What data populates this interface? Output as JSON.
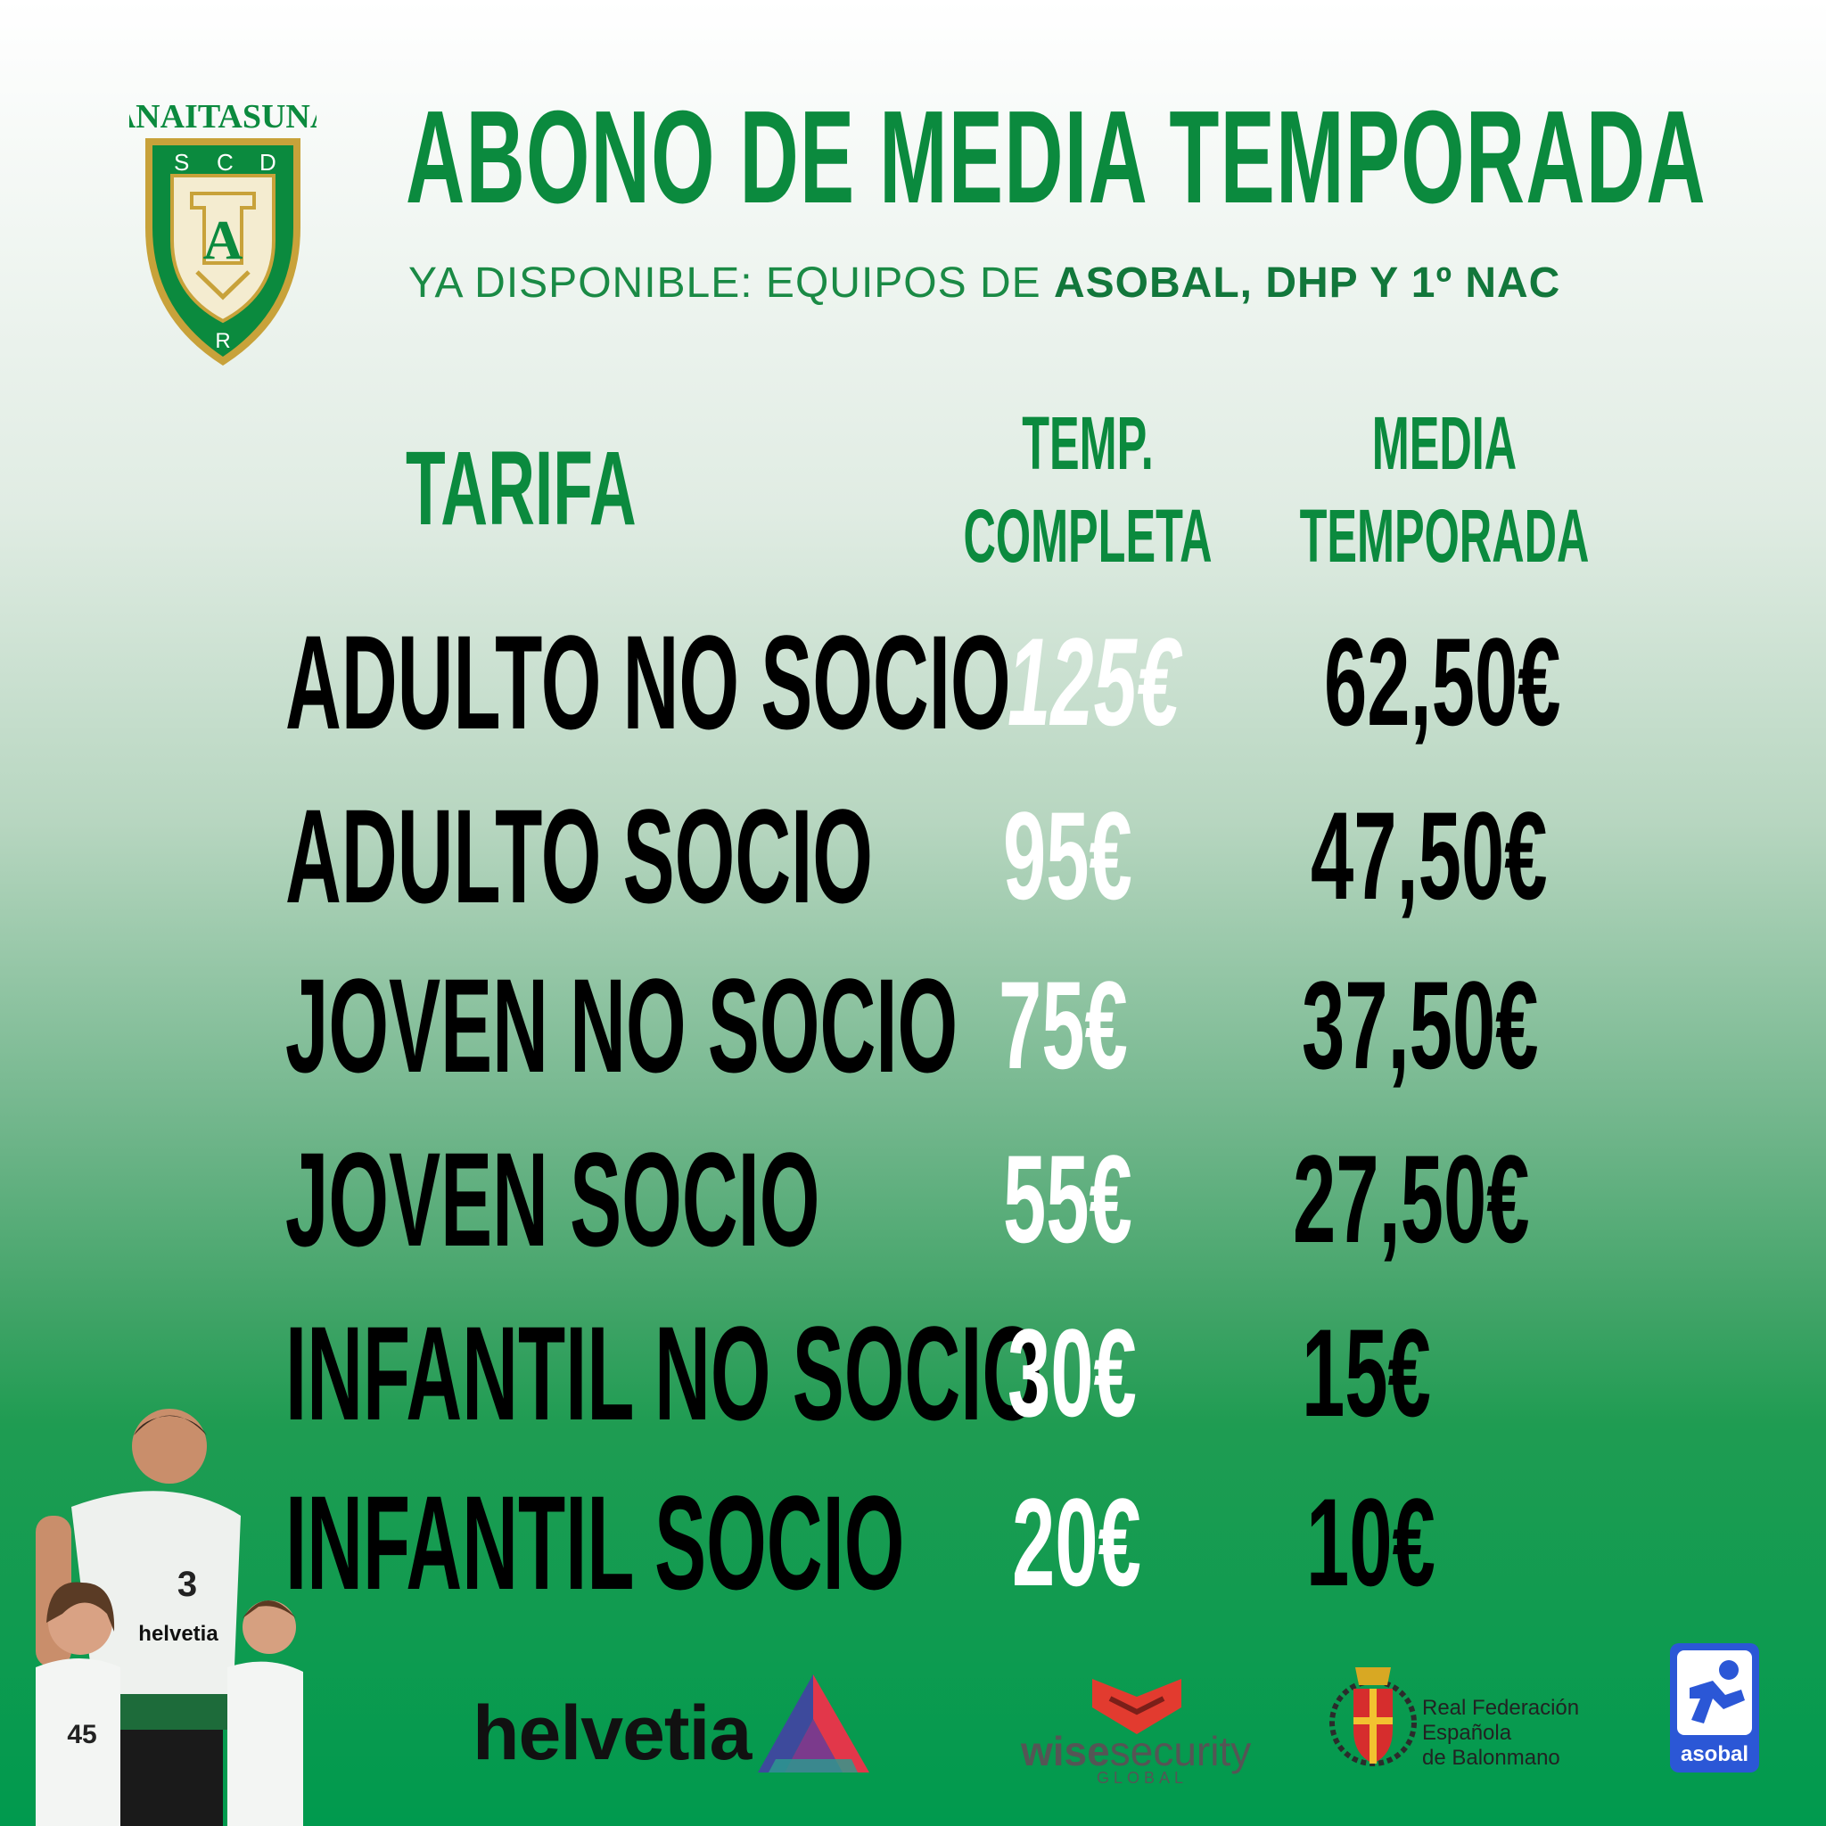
{
  "club": {
    "name": "ANAITASUNA",
    "letters": [
      "S",
      "C",
      "D",
      "R"
    ],
    "initial": "A"
  },
  "header": {
    "title": "ABONO DE MEDIA TEMPORADA",
    "subtitle_prefix": "YA DISPONIBLE: EQUIPOS DE ",
    "subtitle_bold": "ASOBAL, DHP Y 1º NAC"
  },
  "columns": {
    "tarifa": "TARIFA",
    "full_line1": "TEMP.",
    "full_line2": "COMPLETA",
    "half_line1": "MEDIA",
    "half_line2": "TEMPORADA"
  },
  "rows": [
    {
      "label": "ADULTO NO SOCIO",
      "full": "125€",
      "half": "62,50€"
    },
    {
      "label": "ADULTO SOCIO",
      "full": "95€",
      "half": "47,50€"
    },
    {
      "label": "JOVEN NO SOCIO",
      "full": "75€",
      "half": "37,50€"
    },
    {
      "label": "JOVEN SOCIO",
      "full": "55€",
      "half": "27,50€"
    },
    {
      "label": "INFANTIL NO SOCIO",
      "full": "30€",
      "half": "15€"
    },
    {
      "label": "INFANTIL SOCIO",
      "full": "20€",
      "half": "10€"
    }
  ],
  "sponsors": {
    "helvetia": "helvetia",
    "wise_main": "wise",
    "wise_rest": "security",
    "wise_sub": "GLOBAL",
    "rfeb_line1": "Real Federación",
    "rfeb_line2": "Española",
    "rfeb_line3": "de Balonmano",
    "asobal": "asobal"
  },
  "players": {
    "jersey_number_adult": "3",
    "jersey_number_kid": "45",
    "jersey_sponsor": "helvetia"
  },
  "colors": {
    "brand_green": "#0b8a3e",
    "gold": "#c8a23a",
    "price_white": "#ffffff",
    "label_black": "#000000",
    "asobal_blue": "#2b57d6"
  }
}
